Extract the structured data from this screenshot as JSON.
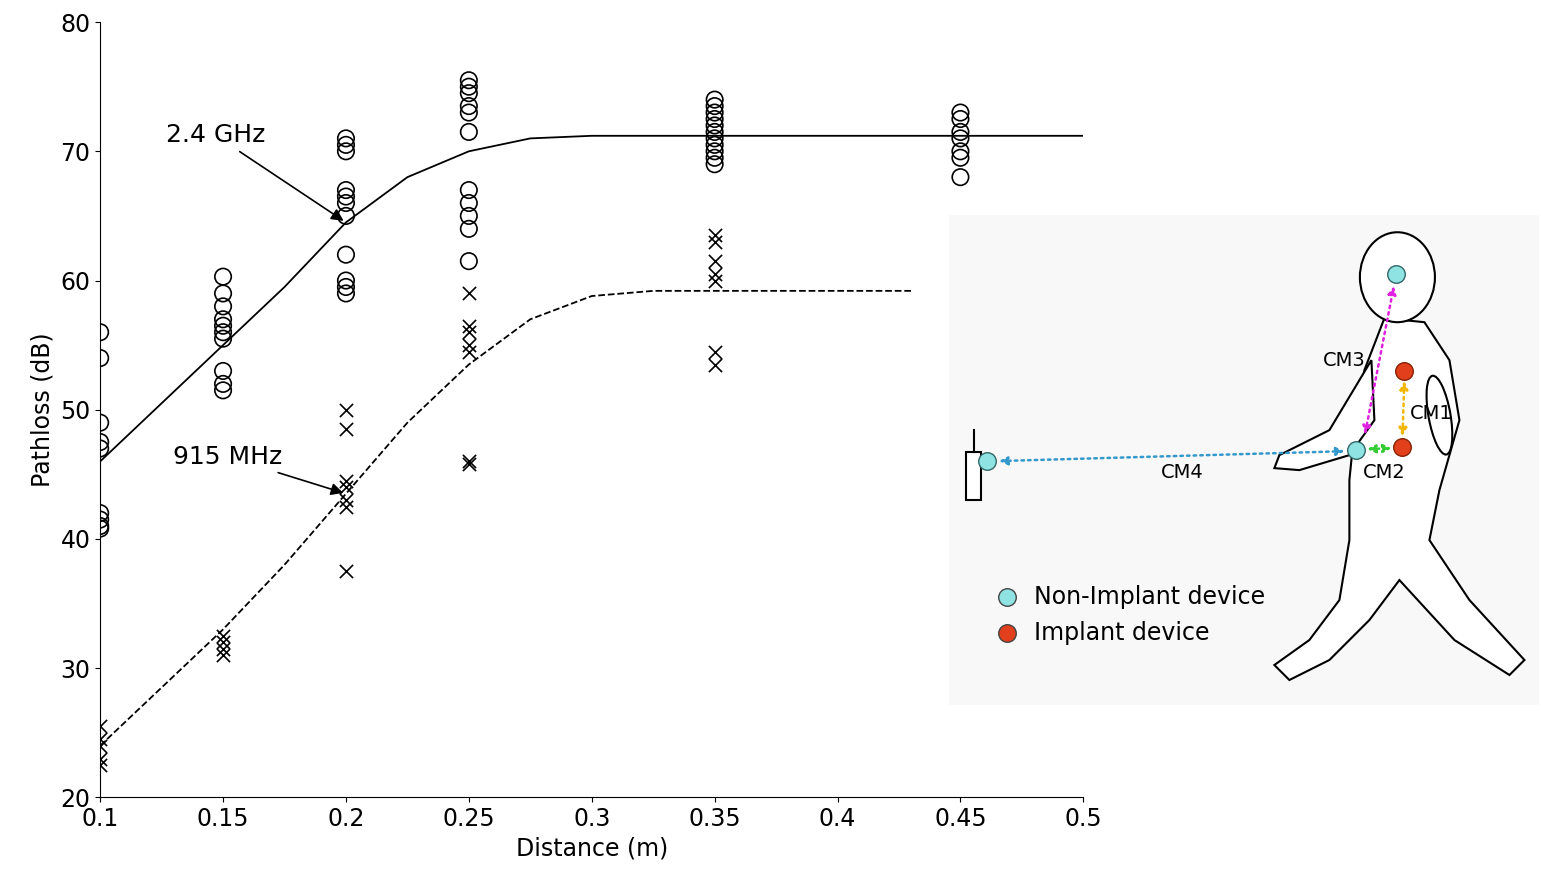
{
  "chart_data": {
    "type": "scatter",
    "x_label": "Distance (m)",
    "y_label": "Pathloss (dB)",
    "xlim": [
      0.1,
      0.5
    ],
    "xticks": [
      0.1,
      0.15,
      0.2,
      0.25,
      0.3,
      0.35,
      0.4,
      0.45,
      0.5
    ],
    "ylim": [
      20,
      80
    ],
    "yticks": [
      20,
      30,
      40,
      50,
      60,
      70,
      80
    ],
    "grid": false,
    "series": [
      {
        "name": "2.4 GHz",
        "color": "#000000",
        "marker": "o",
        "x": [
          0.1,
          0.1,
          0.1,
          0.1,
          0.1,
          0.1,
          0.1,
          0.1,
          0.1,
          0.15,
          0.15,
          0.15,
          0.15,
          0.15,
          0.15,
          0.15,
          0.15,
          0.15,
          0.15,
          0.2,
          0.2,
          0.2,
          0.2,
          0.2,
          0.2,
          0.2,
          0.2,
          0.2,
          0.2,
          0.2,
          0.25,
          0.25,
          0.25,
          0.25,
          0.25,
          0.25,
          0.25,
          0.25,
          0.25,
          0.25,
          0.25,
          0.35,
          0.35,
          0.35,
          0.35,
          0.35,
          0.35,
          0.35,
          0.35,
          0.35,
          0.35,
          0.35,
          0.45,
          0.45,
          0.45,
          0.45,
          0.45,
          0.45,
          0.45
        ],
        "values": [
          56,
          54,
          49,
          47.5,
          47,
          42,
          41.5,
          41,
          40.8,
          60.3,
          59,
          58,
          57,
          56.5,
          56,
          55.5,
          53,
          52,
          51.5,
          71,
          70.5,
          70,
          67,
          66.5,
          66,
          65,
          62,
          60,
          59.5,
          59,
          75.5,
          75,
          74.5,
          73.5,
          73,
          71.5,
          67,
          66,
          65,
          64,
          61.5,
          74,
          73.5,
          73,
          72.5,
          72,
          71.5,
          71,
          70.5,
          70,
          69.5,
          69,
          73,
          72.5,
          71.5,
          71,
          70,
          69.5,
          68
        ],
        "fit": {
          "line_style": "solid",
          "x": [
            0.1,
            0.125,
            0.15,
            0.175,
            0.2,
            0.225,
            0.25,
            0.275,
            0.3,
            0.35,
            0.4,
            0.45,
            0.5
          ],
          "values": [
            46,
            50.5,
            55,
            59.5,
            64.5,
            68,
            70,
            71,
            71.2,
            71.2,
            71.2,
            71.2,
            71.2
          ]
        }
      },
      {
        "name": "915 MHz",
        "color": "#000000",
        "marker": "x",
        "x": [
          0.1,
          0.1,
          0.1,
          0.1,
          0.1,
          0.15,
          0.15,
          0.15,
          0.15,
          0.2,
          0.2,
          0.2,
          0.2,
          0.2,
          0.2,
          0.2,
          0.25,
          0.25,
          0.25,
          0.25,
          0.25,
          0.25,
          0.25,
          0.35,
          0.35,
          0.35,
          0.35,
          0.35,
          0.35,
          0.35
        ],
        "values": [
          25.5,
          24.5,
          24,
          23,
          22.5,
          32.5,
          32,
          31.5,
          31,
          50,
          48.5,
          44.5,
          44,
          43,
          42.5,
          37.5,
          59,
          56.5,
          56,
          55,
          54.5,
          46,
          45.8,
          63.5,
          63,
          61.5,
          60.5,
          60,
          54.5,
          53.5
        ],
        "fit": {
          "line_style": "dashed",
          "x": [
            0.1,
            0.125,
            0.15,
            0.175,
            0.2,
            0.225,
            0.25,
            0.275,
            0.3,
            0.325,
            0.35,
            0.4,
            0.43
          ],
          "values": [
            24,
            28.5,
            33,
            38,
            43.5,
            49,
            53.5,
            57,
            58.8,
            59.2,
            59.2,
            59.2,
            59.2
          ]
        }
      }
    ]
  },
  "diagram": {
    "links": [
      {
        "label": "CM1",
        "color": "#f2b705"
      },
      {
        "label": "CM2",
        "color": "#33cc33"
      },
      {
        "label": "CM3",
        "color": "#e020e0"
      },
      {
        "label": "CM4",
        "color": "#3399cc"
      }
    ],
    "devices": [
      {
        "label": "Non-Implant device",
        "color": "#8fe3e3"
      },
      {
        "label": "Implant device",
        "color": "#e2401c"
      }
    ]
  }
}
